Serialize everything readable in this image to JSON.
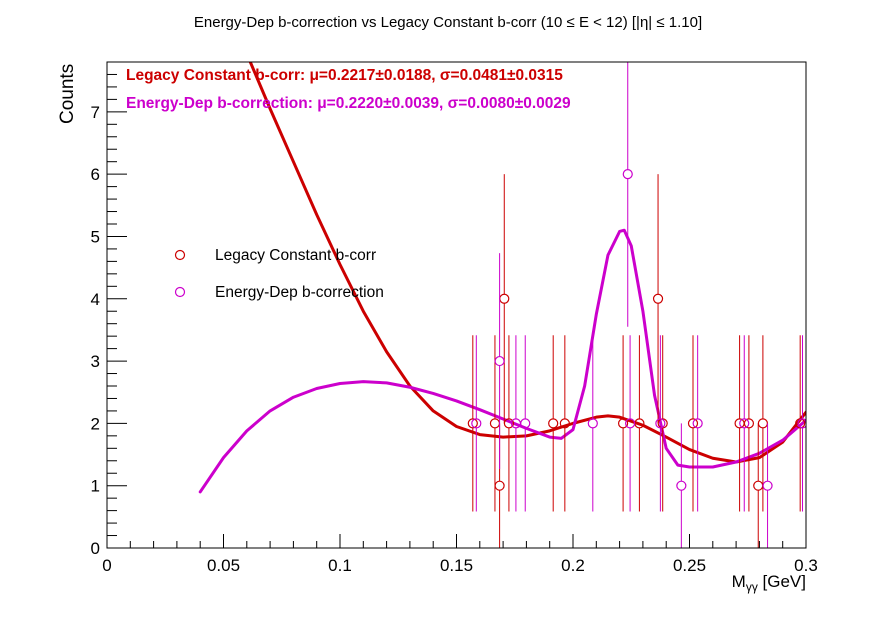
{
  "chart_data": {
    "type": "scatter",
    "title": "Energy-Dep b-correction vs Legacy Constant b-corr   (10 ≤ E < 12)   [|η| ≤ 1.10]",
    "xlabel": "Mγγ [GeV]",
    "xlabel_main": "M",
    "xlabel_sub": "γγ",
    "xlabel_unit": " [GeV]",
    "ylabel": "Counts",
    "xlim": [
      0,
      0.3
    ],
    "ylim": [
      0,
      7.8
    ],
    "x_ticks": [
      0,
      0.05,
      0.1,
      0.15,
      0.2,
      0.25,
      0.3
    ],
    "x_tick_labels": [
      "0",
      "0.05",
      "0.1",
      "0.15",
      "0.2",
      "0.25",
      "0.3"
    ],
    "y_ticks": [
      0,
      1,
      2,
      3,
      4,
      5,
      6,
      7
    ],
    "y_tick_labels": [
      "0",
      "1",
      "2",
      "3",
      "4",
      "5",
      "6",
      "7"
    ],
    "grid": false,
    "legend_position": "left-middle",
    "annotations": [
      {
        "text": "Legacy Constant b-corr: μ=0.2217±0.0188, σ=0.0481±0.0315",
        "color": "#cc0000"
      },
      {
        "text": "Energy-Dep b-correction: μ=0.2220±0.0039, σ=0.0080±0.0029",
        "color": "#cc00cc"
      }
    ],
    "series": [
      {
        "name": "Legacy Constant b-corr",
        "color": "#cc0000",
        "points": [
          {
            "x": 0.157,
            "y": 2
          },
          {
            "x": 0.1665,
            "y": 2
          },
          {
            "x": 0.1685,
            "y": 1
          },
          {
            "x": 0.1705,
            "y": 4
          },
          {
            "x": 0.1725,
            "y": 2
          },
          {
            "x": 0.1915,
            "y": 2
          },
          {
            "x": 0.1965,
            "y": 2
          },
          {
            "x": 0.2215,
            "y": 2
          },
          {
            "x": 0.2285,
            "y": 2
          },
          {
            "x": 0.2365,
            "y": 4
          },
          {
            "x": 0.2385,
            "y": 2
          },
          {
            "x": 0.2515,
            "y": 2
          },
          {
            "x": 0.2715,
            "y": 2
          },
          {
            "x": 0.2755,
            "y": 2
          },
          {
            "x": 0.2795,
            "y": 1
          },
          {
            "x": 0.2815,
            "y": 2
          },
          {
            "x": 0.2975,
            "y": 2
          }
        ],
        "fit": {
          "x": [
            0.0615,
            0.07,
            0.08,
            0.09,
            0.1,
            0.11,
            0.12,
            0.13,
            0.14,
            0.15,
            0.16,
            0.17,
            0.18,
            0.19,
            0.2,
            0.21,
            0.215,
            0.22,
            0.23,
            0.24,
            0.25,
            0.26,
            0.27,
            0.28,
            0.29,
            0.3
          ],
          "y": [
            7.8,
            7.05,
            6.2,
            5.35,
            4.55,
            3.8,
            3.15,
            2.6,
            2.2,
            1.95,
            1.82,
            1.78,
            1.8,
            1.88,
            2.0,
            2.1,
            2.12,
            2.1,
            1.97,
            1.78,
            1.58,
            1.44,
            1.38,
            1.45,
            1.7,
            2.18
          ]
        }
      },
      {
        "name": "Energy-Dep b-correction",
        "color": "#cc00cc",
        "points": [
          {
            "x": 0.1585,
            "y": 2
          },
          {
            "x": 0.1685,
            "y": 3
          },
          {
            "x": 0.1755,
            "y": 2
          },
          {
            "x": 0.1795,
            "y": 2
          },
          {
            "x": 0.2085,
            "y": 2
          },
          {
            "x": 0.2235,
            "y": 6
          },
          {
            "x": 0.2245,
            "y": 2
          },
          {
            "x": 0.2375,
            "y": 2
          },
          {
            "x": 0.2465,
            "y": 1
          },
          {
            "x": 0.2535,
            "y": 2
          },
          {
            "x": 0.2735,
            "y": 2
          },
          {
            "x": 0.2835,
            "y": 1
          },
          {
            "x": 0.2985,
            "y": 2
          }
        ],
        "fit": {
          "x": [
            0.04,
            0.05,
            0.06,
            0.07,
            0.08,
            0.09,
            0.1,
            0.11,
            0.12,
            0.13,
            0.14,
            0.15,
            0.16,
            0.17,
            0.18,
            0.19,
            0.195,
            0.2,
            0.205,
            0.21,
            0.215,
            0.22,
            0.222,
            0.225,
            0.23,
            0.235,
            0.24,
            0.245,
            0.25,
            0.26,
            0.27,
            0.28,
            0.29,
            0.3
          ],
          "y": [
            0.9,
            1.45,
            1.88,
            2.2,
            2.42,
            2.56,
            2.64,
            2.67,
            2.65,
            2.58,
            2.48,
            2.36,
            2.22,
            2.07,
            1.92,
            1.78,
            1.76,
            1.9,
            2.6,
            3.75,
            4.7,
            5.08,
            5.1,
            4.85,
            3.8,
            2.45,
            1.6,
            1.33,
            1.3,
            1.3,
            1.38,
            1.52,
            1.73,
            2.05
          ]
        }
      }
    ]
  }
}
